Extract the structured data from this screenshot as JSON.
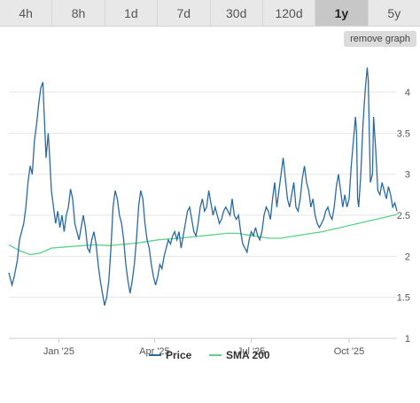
{
  "range_buttons": [
    {
      "label": "4h",
      "active": false
    },
    {
      "label": "8h",
      "active": false
    },
    {
      "label": "1d",
      "active": false
    },
    {
      "label": "7d",
      "active": false
    },
    {
      "label": "30d",
      "active": false
    },
    {
      "label": "120d",
      "active": false
    },
    {
      "label": "1y",
      "active": true
    },
    {
      "label": "5y",
      "active": false
    }
  ],
  "remove_graph_label": "remove graph",
  "chart_data": {
    "type": "line",
    "x_tick_labels": [
      "Jan '25",
      "Apr '25",
      "Jul '25",
      "Oct '25"
    ],
    "x_tick_days": [
      47,
      137,
      228,
      320
    ],
    "y_ticks": [
      1,
      1.5,
      2,
      2.5,
      3,
      3.5,
      4
    ],
    "ylim": [
      1,
      4.4
    ],
    "xlim_days": [
      0,
      365
    ],
    "grid": true,
    "legend_position": "bottom",
    "colors": {
      "price": "#2a6aa0",
      "sma": "#5cd18a"
    },
    "series": [
      {
        "name": "Price",
        "points": [
          [
            0,
            1.8
          ],
          [
            3,
            1.65
          ],
          [
            5,
            1.75
          ],
          [
            8,
            1.95
          ],
          [
            10,
            2.2
          ],
          [
            12,
            2.3
          ],
          [
            14,
            2.4
          ],
          [
            16,
            2.6
          ],
          [
            18,
            2.9
          ],
          [
            20,
            3.1
          ],
          [
            22,
            3.0
          ],
          [
            24,
            3.4
          ],
          [
            26,
            3.6
          ],
          [
            28,
            3.85
          ],
          [
            30,
            4.05
          ],
          [
            32,
            4.12
          ],
          [
            33,
            3.8
          ],
          [
            35,
            3.2
          ],
          [
            37,
            3.5
          ],
          [
            38,
            3.3
          ],
          [
            40,
            2.8
          ],
          [
            42,
            2.6
          ],
          [
            44,
            2.4
          ],
          [
            46,
            2.55
          ],
          [
            48,
            2.35
          ],
          [
            50,
            2.5
          ],
          [
            52,
            2.3
          ],
          [
            54,
            2.5
          ],
          [
            56,
            2.6
          ],
          [
            58,
            2.82
          ],
          [
            60,
            2.7
          ],
          [
            62,
            2.4
          ],
          [
            64,
            2.3
          ],
          [
            66,
            2.2
          ],
          [
            68,
            2.35
          ],
          [
            70,
            2.5
          ],
          [
            72,
            2.35
          ],
          [
            74,
            2.1
          ],
          [
            76,
            2.05
          ],
          [
            78,
            2.2
          ],
          [
            80,
            2.3
          ],
          [
            82,
            2.15
          ],
          [
            84,
            1.9
          ],
          [
            86,
            1.7
          ],
          [
            88,
            1.55
          ],
          [
            90,
            1.4
          ],
          [
            92,
            1.5
          ],
          [
            94,
            1.7
          ],
          [
            96,
            2.1
          ],
          [
            98,
            2.6
          ],
          [
            100,
            2.8
          ],
          [
            102,
            2.7
          ],
          [
            104,
            2.5
          ],
          [
            106,
            2.4
          ],
          [
            108,
            2.2
          ],
          [
            110,
            1.9
          ],
          [
            112,
            1.7
          ],
          [
            114,
            1.55
          ],
          [
            116,
            1.7
          ],
          [
            118,
            1.9
          ],
          [
            120,
            2.2
          ],
          [
            122,
            2.6
          ],
          [
            124,
            2.8
          ],
          [
            126,
            2.7
          ],
          [
            128,
            2.4
          ],
          [
            130,
            2.2
          ],
          [
            132,
            2.1
          ],
          [
            134,
            1.9
          ],
          [
            136,
            1.75
          ],
          [
            138,
            1.65
          ],
          [
            140,
            1.75
          ],
          [
            142,
            1.9
          ],
          [
            144,
            1.85
          ],
          [
            146,
            2.0
          ],
          [
            148,
            2.1
          ],
          [
            150,
            2.2
          ],
          [
            152,
            2.15
          ],
          [
            154,
            2.25
          ],
          [
            156,
            2.3
          ],
          [
            158,
            2.2
          ],
          [
            160,
            2.3
          ],
          [
            162,
            2.1
          ],
          [
            164,
            2.25
          ],
          [
            166,
            2.4
          ],
          [
            168,
            2.55
          ],
          [
            170,
            2.6
          ],
          [
            172,
            2.45
          ],
          [
            174,
            2.3
          ],
          [
            176,
            2.25
          ],
          [
            178,
            2.4
          ],
          [
            180,
            2.6
          ],
          [
            182,
            2.7
          ],
          [
            184,
            2.55
          ],
          [
            186,
            2.6
          ],
          [
            188,
            2.8
          ],
          [
            190,
            2.65
          ],
          [
            192,
            2.5
          ],
          [
            194,
            2.6
          ],
          [
            196,
            2.5
          ],
          [
            198,
            2.4
          ],
          [
            200,
            2.45
          ],
          [
            202,
            2.55
          ],
          [
            204,
            2.6
          ],
          [
            206,
            2.55
          ],
          [
            208,
            2.5
          ],
          [
            210,
            2.7
          ],
          [
            212,
            2.5
          ],
          [
            214,
            2.45
          ],
          [
            216,
            2.5
          ],
          [
            218,
            2.3
          ],
          [
            220,
            2.15
          ],
          [
            222,
            2.1
          ],
          [
            224,
            2.05
          ],
          [
            226,
            2.2
          ],
          [
            228,
            2.3
          ],
          [
            230,
            2.25
          ],
          [
            232,
            2.35
          ],
          [
            234,
            2.25
          ],
          [
            236,
            2.2
          ],
          [
            238,
            2.3
          ],
          [
            240,
            2.5
          ],
          [
            242,
            2.6
          ],
          [
            244,
            2.55
          ],
          [
            246,
            2.45
          ],
          [
            248,
            2.7
          ],
          [
            250,
            2.9
          ],
          [
            252,
            2.6
          ],
          [
            254,
            2.8
          ],
          [
            256,
            3.0
          ],
          [
            258,
            3.2
          ],
          [
            260,
            2.95
          ],
          [
            262,
            2.7
          ],
          [
            264,
            2.6
          ],
          [
            266,
            2.75
          ],
          [
            268,
            2.9
          ],
          [
            270,
            2.6
          ],
          [
            272,
            2.55
          ],
          [
            274,
            2.7
          ],
          [
            276,
            2.95
          ],
          [
            278,
            3.1
          ],
          [
            280,
            2.9
          ],
          [
            282,
            2.8
          ],
          [
            284,
            2.6
          ],
          [
            286,
            2.7
          ],
          [
            288,
            2.5
          ],
          [
            290,
            2.4
          ],
          [
            292,
            2.35
          ],
          [
            294,
            2.4
          ],
          [
            296,
            2.45
          ],
          [
            298,
            2.55
          ],
          [
            300,
            2.6
          ],
          [
            302,
            2.5
          ],
          [
            304,
            2.45
          ],
          [
            306,
            2.6
          ],
          [
            308,
            2.85
          ],
          [
            310,
            3.0
          ],
          [
            312,
            2.8
          ],
          [
            314,
            2.6
          ],
          [
            316,
            2.75
          ],
          [
            318,
            2.6
          ],
          [
            320,
            2.7
          ],
          [
            322,
            3.1
          ],
          [
            324,
            3.4
          ],
          [
            326,
            3.7
          ],
          [
            327,
            3.5
          ],
          [
            328,
            2.7
          ],
          [
            329,
            2.6
          ],
          [
            331,
            3.0
          ],
          [
            333,
            3.6
          ],
          [
            335,
            4.0
          ],
          [
            337,
            4.3
          ],
          [
            338,
            4.15
          ],
          [
            339,
            3.5
          ],
          [
            340,
            2.9
          ],
          [
            342,
            3.0
          ],
          [
            343,
            3.7
          ],
          [
            345,
            3.3
          ],
          [
            347,
            2.8
          ],
          [
            349,
            2.75
          ],
          [
            351,
            2.9
          ],
          [
            353,
            2.8
          ],
          [
            355,
            2.7
          ],
          [
            357,
            2.85
          ],
          [
            359,
            2.75
          ],
          [
            361,
            2.6
          ],
          [
            363,
            2.65
          ],
          [
            365,
            2.55
          ]
        ]
      },
      {
        "name": "SMA 200",
        "points": [
          [
            0,
            2.14
          ],
          [
            10,
            2.07
          ],
          [
            20,
            2.02
          ],
          [
            30,
            2.04
          ],
          [
            35,
            2.07
          ],
          [
            40,
            2.1
          ],
          [
            60,
            2.12
          ],
          [
            80,
            2.14
          ],
          [
            95,
            2.13
          ],
          [
            110,
            2.15
          ],
          [
            120,
            2.16
          ],
          [
            130,
            2.18
          ],
          [
            140,
            2.2
          ],
          [
            150,
            2.21
          ],
          [
            160,
            2.22
          ],
          [
            175,
            2.24
          ],
          [
            190,
            2.26
          ],
          [
            205,
            2.28
          ],
          [
            215,
            2.28
          ],
          [
            225,
            2.26
          ],
          [
            235,
            2.24
          ],
          [
            245,
            2.22
          ],
          [
            255,
            2.22
          ],
          [
            265,
            2.24
          ],
          [
            275,
            2.26
          ],
          [
            285,
            2.28
          ],
          [
            295,
            2.3
          ],
          [
            305,
            2.33
          ],
          [
            315,
            2.36
          ],
          [
            325,
            2.39
          ],
          [
            335,
            2.42
          ],
          [
            345,
            2.45
          ],
          [
            355,
            2.48
          ],
          [
            365,
            2.51
          ]
        ]
      }
    ]
  }
}
